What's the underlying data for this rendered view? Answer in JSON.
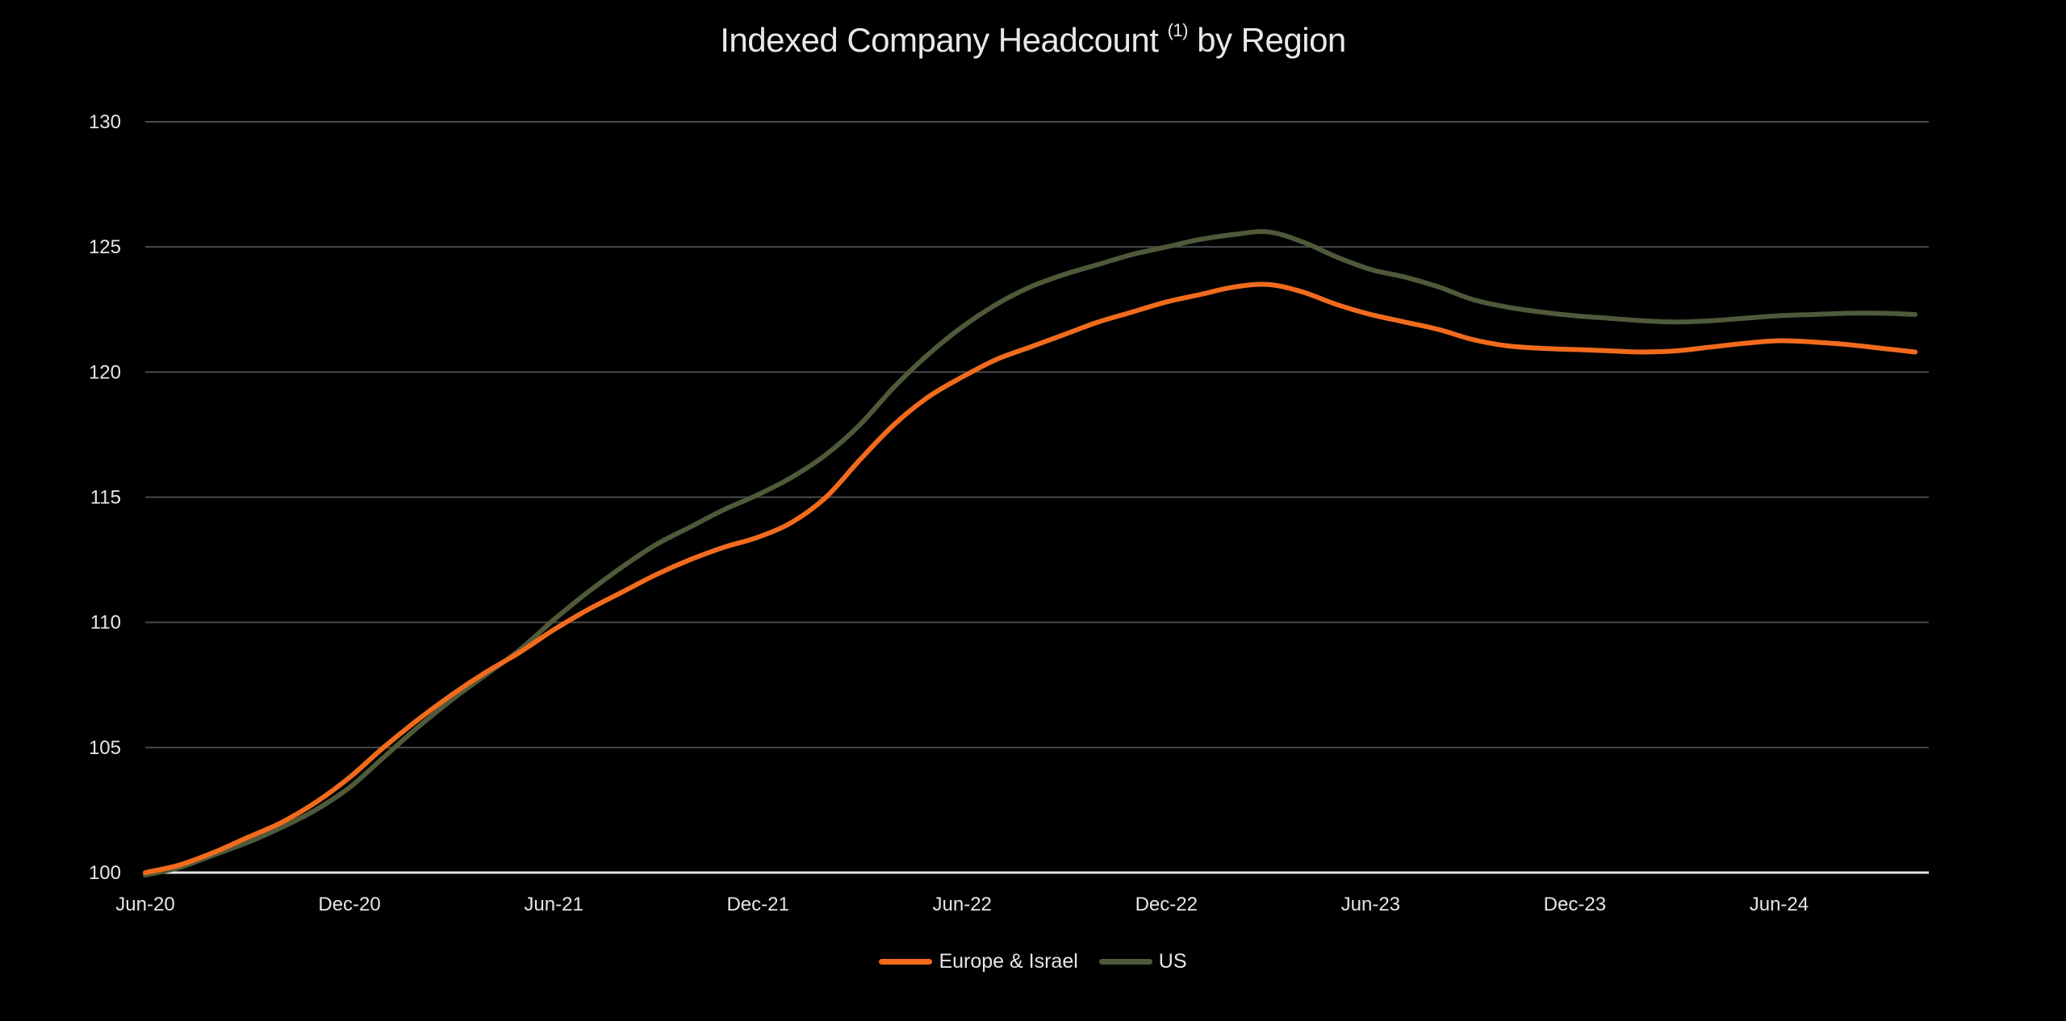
{
  "chart_data": {
    "type": "line",
    "title": "Indexed Company Headcount",
    "title_superscript": "(1)",
    "title_suffix": "by Region",
    "xlabel": "",
    "ylabel": "",
    "ylim": [
      100,
      130
    ],
    "yticks": [
      "100",
      "105",
      "110",
      "115",
      "120",
      "125",
      "130"
    ],
    "ytick_values": [
      100,
      105,
      110,
      115,
      120,
      125,
      130
    ],
    "xticks": [
      "Jun-20",
      "Dec-20",
      "Jun-21",
      "Dec-21",
      "Jun-22",
      "Dec-22",
      "Jun-23",
      "Dec-23",
      "Jun-24"
    ],
    "xtick_months": [
      0,
      6,
      12,
      18,
      24,
      30,
      36,
      42,
      48
    ],
    "xlim_months": [
      0,
      52.4
    ],
    "grid": true,
    "legend_position": "bottom-center",
    "series": [
      {
        "name": "Europe & Israel",
        "color": "#f26b1d",
        "months": [
          0,
          1,
          2,
          3,
          4,
          5,
          6,
          7,
          8,
          9,
          10,
          11,
          12,
          13,
          14,
          15,
          16,
          17,
          18,
          19,
          20,
          21,
          22,
          23,
          24,
          25,
          26,
          27,
          28,
          29,
          30,
          31,
          32,
          33,
          34,
          35,
          36,
          37,
          38,
          39,
          40,
          41,
          42,
          43,
          44,
          45,
          46,
          47,
          48,
          49,
          50,
          51,
          52
        ],
        "values": [
          100.0,
          100.3,
          100.8,
          101.4,
          102.0,
          102.8,
          103.8,
          105.0,
          106.1,
          107.1,
          108.0,
          108.8,
          109.7,
          110.5,
          111.2,
          111.9,
          112.5,
          113.0,
          113.4,
          114.0,
          115.0,
          116.5,
          117.9,
          119.0,
          119.8,
          120.5,
          121.0,
          121.5,
          122.0,
          122.4,
          122.8,
          123.1,
          123.4,
          123.5,
          123.2,
          122.7,
          122.3,
          122.0,
          121.7,
          121.3,
          121.05,
          120.95,
          120.9,
          120.85,
          120.8,
          120.85,
          121.0,
          121.15,
          121.25,
          121.2,
          121.1,
          120.95,
          120.8
        ]
      },
      {
        "name": "US",
        "color": "#4e5a3a",
        "months": [
          0,
          1,
          2,
          3,
          4,
          5,
          6,
          7,
          8,
          9,
          10,
          11,
          12,
          13,
          14,
          15,
          16,
          17,
          18,
          19,
          20,
          21,
          22,
          23,
          24,
          25,
          26,
          27,
          28,
          29,
          30,
          31,
          32,
          33,
          34,
          35,
          36,
          37,
          38,
          39,
          40,
          41,
          42,
          43,
          44,
          45,
          46,
          47,
          48,
          49,
          50,
          51,
          52
        ],
        "values": [
          99.9,
          100.2,
          100.7,
          101.2,
          101.8,
          102.5,
          103.4,
          104.6,
          105.8,
          106.9,
          107.9,
          108.9,
          110.1,
          111.2,
          112.2,
          113.1,
          113.8,
          114.5,
          115.1,
          115.8,
          116.7,
          117.9,
          119.4,
          120.7,
          121.8,
          122.7,
          123.4,
          123.9,
          124.3,
          124.7,
          125.0,
          125.3,
          125.5,
          125.6,
          125.2,
          124.6,
          124.1,
          123.8,
          123.4,
          122.9,
          122.6,
          122.4,
          122.25,
          122.15,
          122.05,
          122.0,
          122.05,
          122.15,
          122.25,
          122.3,
          122.35,
          122.35,
          122.3
        ]
      }
    ]
  },
  "colors": {
    "background": "#000000",
    "grid": "#4a4a4a",
    "axis": "#e6e6e6",
    "text": "#e6e6e6"
  }
}
